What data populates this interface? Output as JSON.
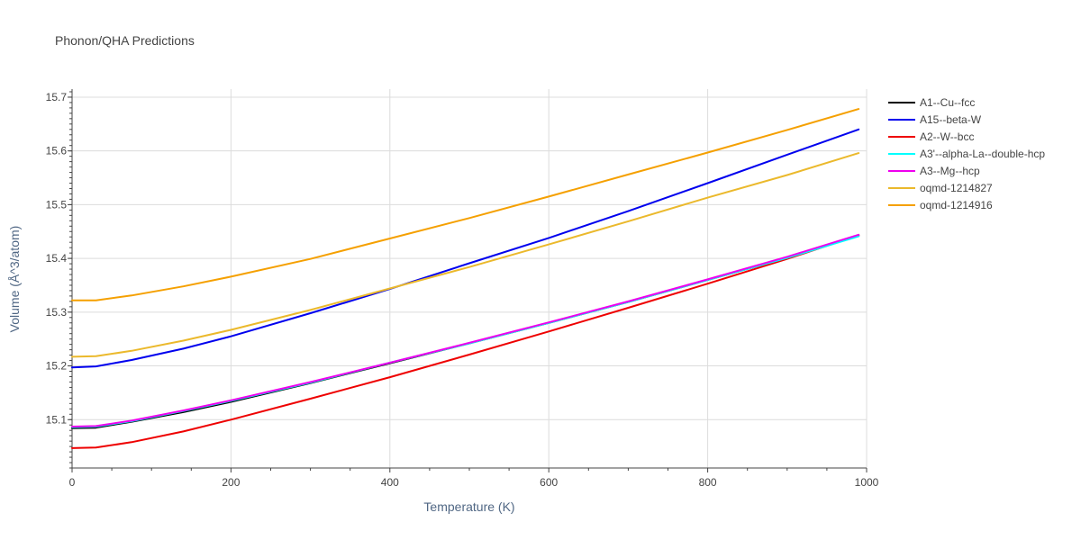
{
  "chart_data": {
    "type": "line",
    "title": "Phonon/QHA Predictions",
    "xlabel": "Temperature (K)",
    "ylabel": "Volume (Å^3/atom)",
    "xlim": [
      0,
      1000
    ],
    "ylim": [
      15.01,
      15.715
    ],
    "x_ticks": [
      0,
      200,
      400,
      600,
      800,
      1000
    ],
    "y_ticks": [
      15.1,
      15.2,
      15.3,
      15.4,
      15.5,
      15.6,
      15.7
    ],
    "x_minor_step": 50,
    "y_minor_step": 0.01,
    "grid": true,
    "legend_position": "right",
    "x": [
      0,
      30,
      75,
      140,
      200,
      300,
      400,
      500,
      600,
      700,
      800,
      900,
      990
    ],
    "series": [
      {
        "name": "A1--Cu--fcc",
        "color": "#000000",
        "values": [
          15.084,
          15.085,
          15.096,
          15.114,
          15.133,
          15.168,
          15.205,
          15.242,
          15.28,
          15.319,
          15.36,
          15.401,
          15.442
        ]
      },
      {
        "name": "A15--beta-W",
        "color": "#0000ee",
        "values": [
          15.197,
          15.199,
          15.211,
          15.232,
          15.255,
          15.298,
          15.343,
          15.391,
          15.438,
          15.488,
          15.54,
          15.593,
          15.64
        ]
      },
      {
        "name": "A2--W--bcc",
        "color": "#ee0000",
        "values": [
          15.047,
          15.048,
          15.058,
          15.078,
          15.1,
          15.139,
          15.179,
          15.221,
          15.264,
          15.308,
          15.353,
          15.399,
          15.443
        ]
      },
      {
        "name": "A3'--alpha-La--double-hcp",
        "color": "#00ffff",
        "values": [
          15.086,
          15.087,
          15.097,
          15.116,
          15.135,
          15.169,
          15.206,
          15.242,
          15.28,
          15.319,
          15.36,
          15.401,
          15.441
        ]
      },
      {
        "name": "A3--Mg--hcp",
        "color": "#ee00ee",
        "values": [
          15.087,
          15.088,
          15.098,
          15.117,
          15.136,
          15.17,
          15.206,
          15.243,
          15.281,
          15.32,
          15.361,
          15.403,
          15.444
        ]
      },
      {
        "name": "oqmd-1214827",
        "color": "#ebb92c",
        "values": [
          15.217,
          15.218,
          15.228,
          15.247,
          15.267,
          15.304,
          15.344,
          15.384,
          15.426,
          15.469,
          15.513,
          15.555,
          15.596
        ]
      },
      {
        "name": "oqmd-1214916",
        "color": "#f5a000",
        "values": [
          15.322,
          15.322,
          15.331,
          15.348,
          15.366,
          15.399,
          15.437,
          15.475,
          15.515,
          15.556,
          15.597,
          15.639,
          15.678
        ]
      }
    ]
  }
}
